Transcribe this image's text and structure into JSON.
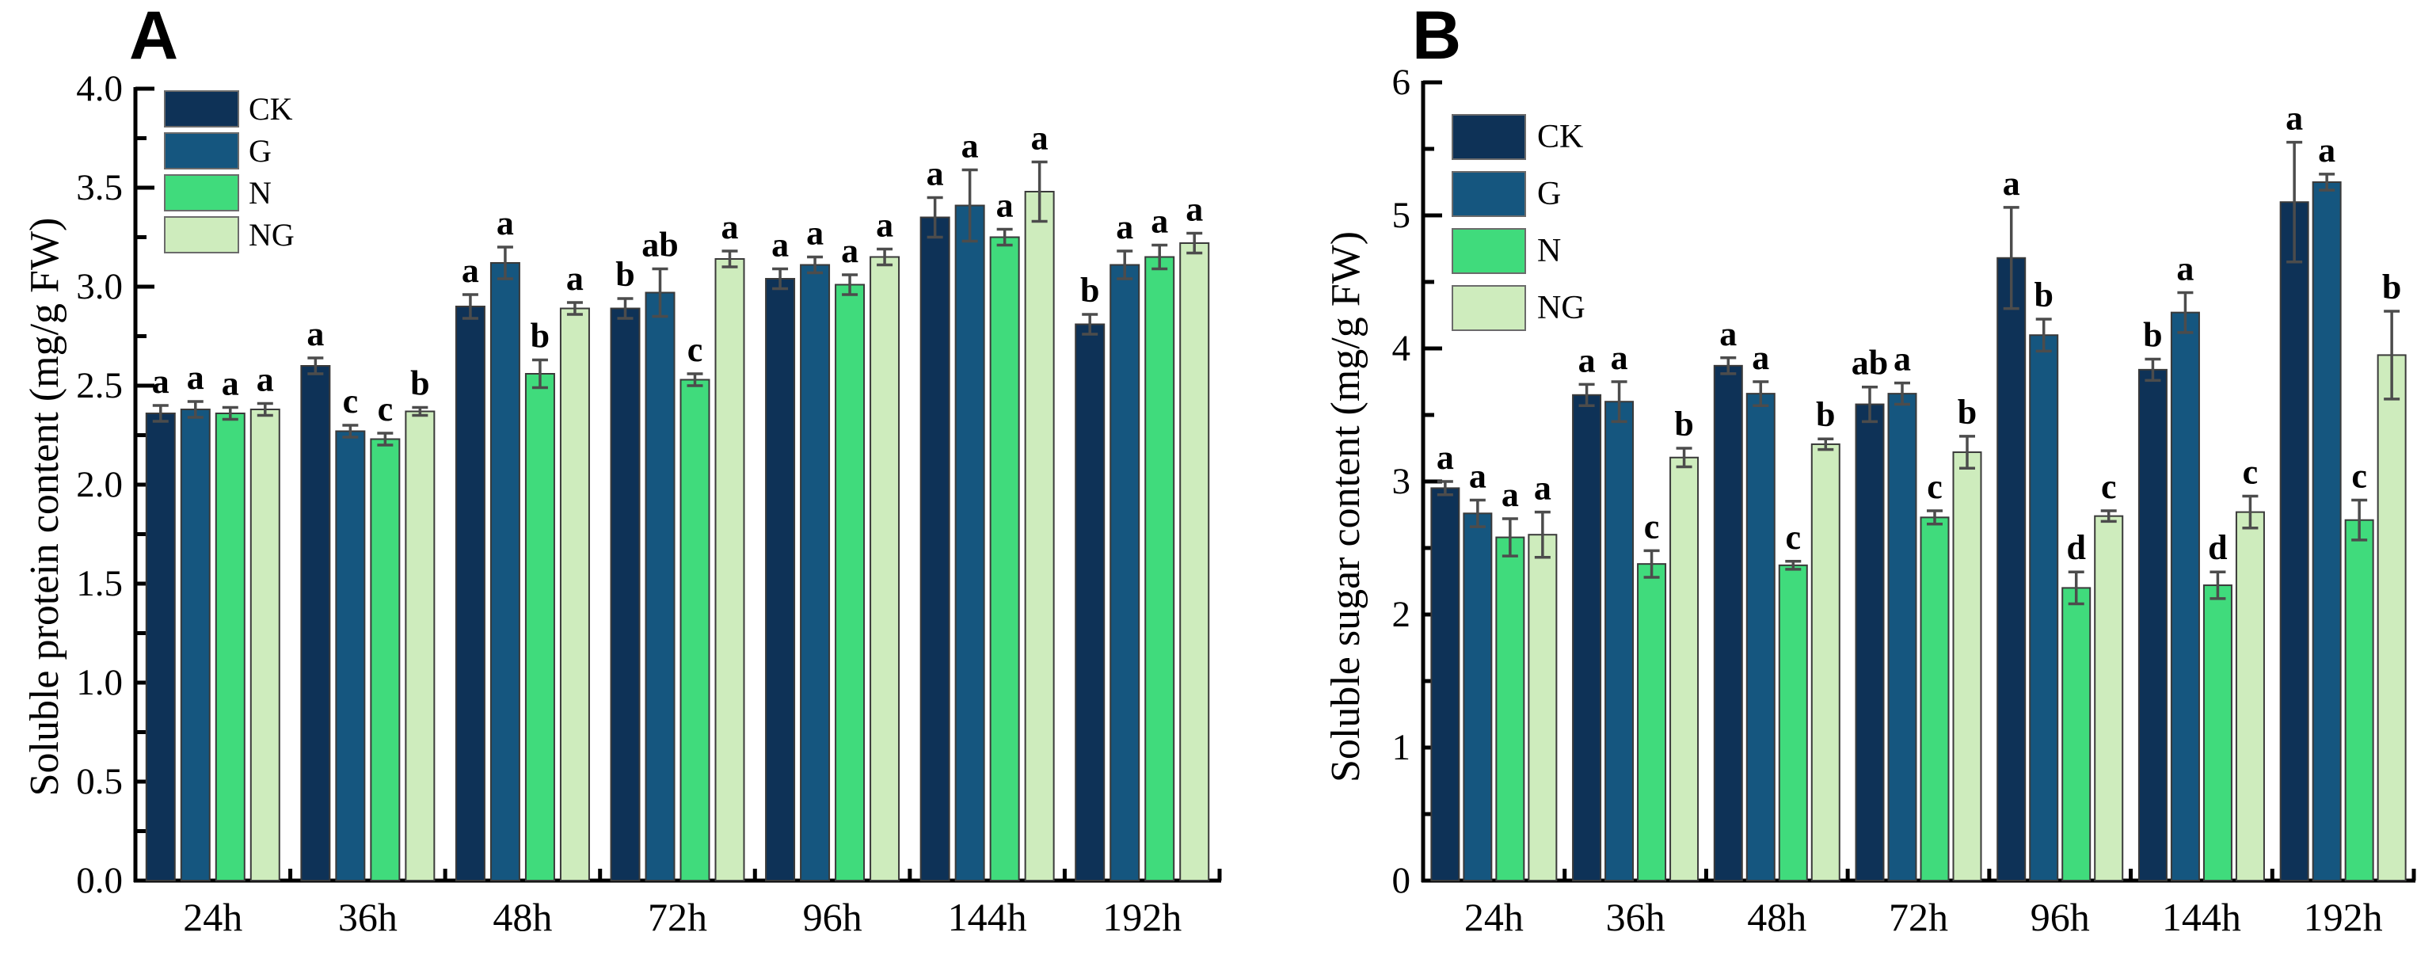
{
  "figure": {
    "panels": [
      {
        "label": "A",
        "y_axis_title": "Soluble protein content (mg/g FW)"
      },
      {
        "label": "B",
        "y_axis_title": "Soluble sugar content (mg/g FW)"
      }
    ]
  },
  "legend": {
    "labels": [
      "CK",
      "G",
      "N",
      "NG"
    ]
  },
  "colors": {
    "CK": "#0e3257",
    "G": "#15567f",
    "N": "#40db7c",
    "NG": "#ceecbd",
    "axis": "#000000",
    "error_bar": "#4c4c4c",
    "bar_outline": "#3a3a3a"
  },
  "chart_data": [
    {
      "type": "bar",
      "panel": "A",
      "title": "",
      "xlabel": "",
      "ylabel": "Soluble protein content (mg/g FW)",
      "ylim": [
        0,
        4.0
      ],
      "ytick_interval": 0.5,
      "minor_tick_interval": 0.25,
      "ytick_decimals": 1,
      "grid": false,
      "legend_position": "top-left",
      "categories": [
        "24h",
        "36h",
        "48h",
        "72h",
        "96h",
        "144h",
        "192h"
      ],
      "series": [
        {
          "name": "CK",
          "values": [
            2.36,
            2.6,
            2.9,
            2.89,
            3.04,
            3.35,
            2.81
          ],
          "errors": [
            0.04,
            0.04,
            0.06,
            0.05,
            0.05,
            0.1,
            0.05
          ],
          "letters": [
            "a",
            "a",
            "a",
            "b",
            "a",
            "a",
            "b"
          ]
        },
        {
          "name": "G",
          "values": [
            2.38,
            2.27,
            3.12,
            2.97,
            3.11,
            3.41,
            3.11
          ],
          "errors": [
            0.04,
            0.03,
            0.08,
            0.12,
            0.04,
            0.18,
            0.07
          ],
          "letters": [
            "a",
            "c",
            "a",
            "ab",
            "a",
            "a",
            "a"
          ]
        },
        {
          "name": "N",
          "values": [
            2.36,
            2.23,
            2.56,
            2.53,
            3.01,
            3.25,
            3.15
          ],
          "errors": [
            0.03,
            0.03,
            0.07,
            0.03,
            0.05,
            0.04,
            0.06
          ],
          "letters": [
            "a",
            "c",
            "b",
            "c",
            "a",
            "a",
            "a"
          ]
        },
        {
          "name": "NG",
          "values": [
            2.38,
            2.37,
            2.89,
            3.14,
            3.15,
            3.48,
            3.22
          ],
          "errors": [
            0.03,
            0.02,
            0.03,
            0.04,
            0.04,
            0.15,
            0.05
          ],
          "letters": [
            "a",
            "b",
            "a",
            "a",
            "a",
            "a",
            "a"
          ]
        }
      ]
    },
    {
      "type": "bar",
      "panel": "B",
      "title": "",
      "xlabel": "",
      "ylabel": "Soluble sugar content (mg/g FW)",
      "ylim": [
        0,
        6
      ],
      "ytick_interval": 1,
      "minor_tick_interval": 0.5,
      "ytick_decimals": 0,
      "grid": false,
      "legend_position": "top-left",
      "categories": [
        "24h",
        "36h",
        "48h",
        "72h",
        "96h",
        "144h",
        "192h"
      ],
      "series": [
        {
          "name": "CK",
          "values": [
            2.95,
            3.65,
            3.87,
            3.58,
            4.68,
            3.84,
            5.1
          ],
          "errors": [
            0.05,
            0.08,
            0.06,
            0.13,
            0.38,
            0.08,
            0.45
          ],
          "letters": [
            "a",
            "a",
            "a",
            "ab",
            "a",
            "b",
            "a"
          ]
        },
        {
          "name": "G",
          "values": [
            2.76,
            3.6,
            3.66,
            3.66,
            4.1,
            4.27,
            5.25
          ],
          "errors": [
            0.1,
            0.15,
            0.09,
            0.08,
            0.12,
            0.15,
            0.06
          ],
          "letters": [
            "a",
            "a",
            "a",
            "a",
            "b",
            "a",
            "a"
          ]
        },
        {
          "name": "N",
          "values": [
            2.58,
            2.38,
            2.37,
            2.73,
            2.2,
            2.22,
            2.71
          ],
          "errors": [
            0.14,
            0.1,
            0.03,
            0.05,
            0.12,
            0.1,
            0.15
          ],
          "letters": [
            "a",
            "c",
            "c",
            "c",
            "d",
            "d",
            "c"
          ]
        },
        {
          "name": "NG",
          "values": [
            2.6,
            3.18,
            3.28,
            3.22,
            2.74,
            2.77,
            3.95
          ],
          "errors": [
            0.17,
            0.07,
            0.04,
            0.12,
            0.04,
            0.12,
            0.33
          ],
          "letters": [
            "a",
            "b",
            "b",
            "b",
            "c",
            "c",
            "b"
          ]
        }
      ]
    }
  ]
}
